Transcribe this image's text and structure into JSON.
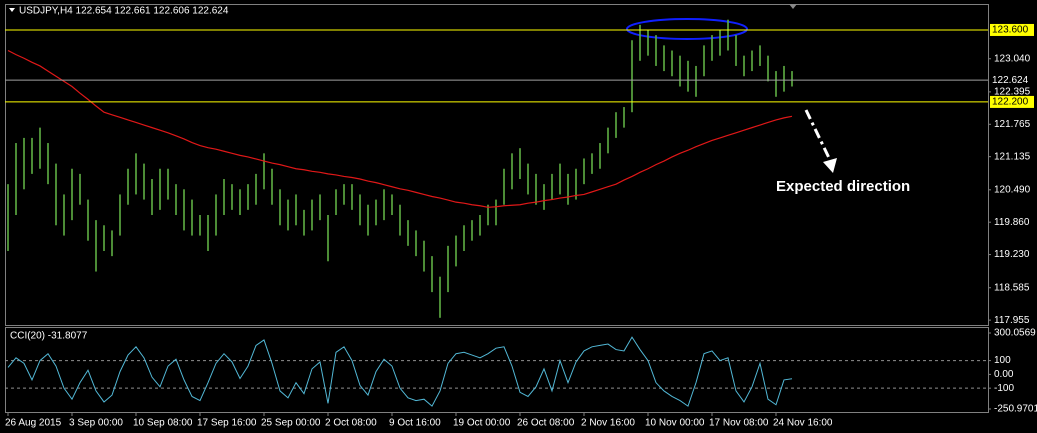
{
  "chart_data": [
    {
      "type": "range-bar",
      "title": "USDJPY,H4 122.654 122.661 122.606 122.624",
      "annotation": "Expected direction",
      "categories": [
        "26 Aug 2015",
        null,
        null,
        null,
        null,
        null,
        null,
        null,
        "3 Sep 00:00",
        null,
        null,
        null,
        null,
        null,
        null,
        null,
        "10 Sep 08:00",
        null,
        null,
        null,
        null,
        null,
        null,
        null,
        "17 Sep 16:00",
        null,
        null,
        null,
        null,
        null,
        null,
        null,
        "25 Sep 00:00",
        null,
        null,
        null,
        null,
        null,
        null,
        null,
        "2 Oct 08:00",
        null,
        null,
        null,
        null,
        null,
        null,
        null,
        "9 Oct 16:00",
        null,
        null,
        null,
        null,
        null,
        null,
        null,
        "19 Oct 00:00",
        null,
        null,
        null,
        null,
        null,
        null,
        null,
        "26 Oct 08:00",
        null,
        null,
        null,
        null,
        null,
        null,
        null,
        "2 Nov 16:00",
        null,
        null,
        null,
        null,
        null,
        null,
        null,
        "10 Nov 00:00",
        null,
        null,
        null,
        null,
        null,
        null,
        null,
        "17 Nov 08:00",
        null,
        null,
        null,
        null,
        null,
        null,
        null,
        "24 Nov 16:00",
        null,
        null
      ],
      "high": [
        120.6,
        121.4,
        121.5,
        121.5,
        121.7,
        121.4,
        121.0,
        120.4,
        120.9,
        120.8,
        120.3,
        119.9,
        119.8,
        119.7,
        120.4,
        120.9,
        121.2,
        121.0,
        120.7,
        120.9,
        120.9,
        120.6,
        120.5,
        120.3,
        120.0,
        120.0,
        120.4,
        120.7,
        120.6,
        120.5,
        120.6,
        120.8,
        121.2,
        120.9,
        120.5,
        120.3,
        120.4,
        120.1,
        120.3,
        120.4,
        120.0,
        120.5,
        120.6,
        120.6,
        120.4,
        120.2,
        120.3,
        120.5,
        120.4,
        120.2,
        119.9,
        119.7,
        119.5,
        119.2,
        118.8,
        119.4,
        119.6,
        119.8,
        119.9,
        120.0,
        120.2,
        120.3,
        120.9,
        121.2,
        121.3,
        121.0,
        120.8,
        120.6,
        120.8,
        121.0,
        120.8,
        120.9,
        121.1,
        121.2,
        121.4,
        121.7,
        122.0,
        122.1,
        123.4,
        123.7,
        123.6,
        123.5,
        123.3,
        123.2,
        123.1,
        123.0,
        122.9,
        123.3,
        123.5,
        123.6,
        123.8,
        123.5,
        123.1,
        123.2,
        123.3,
        123.1,
        122.8,
        122.9,
        122.8
      ],
      "low": [
        119.3,
        120.0,
        120.5,
        120.8,
        120.9,
        120.6,
        119.8,
        119.6,
        119.9,
        120.2,
        119.5,
        118.9,
        119.3,
        119.2,
        119.6,
        120.2,
        120.4,
        120.3,
        120.0,
        120.1,
        120.3,
        120.0,
        119.7,
        119.6,
        119.6,
        119.3,
        119.6,
        120.0,
        120.1,
        120.0,
        120.1,
        120.2,
        120.5,
        120.2,
        119.8,
        119.7,
        119.8,
        119.6,
        119.7,
        119.9,
        119.1,
        120.0,
        120.2,
        120.1,
        119.8,
        119.6,
        119.8,
        119.9,
        120.0,
        119.6,
        119.4,
        119.2,
        118.9,
        118.5,
        118.0,
        118.5,
        119.0,
        119.3,
        119.5,
        119.6,
        119.8,
        119.8,
        120.2,
        120.5,
        120.7,
        120.4,
        120.2,
        120.1,
        120.3,
        120.4,
        120.2,
        120.3,
        120.6,
        120.8,
        120.9,
        121.2,
        121.5,
        121.7,
        122.0,
        123.0,
        123.1,
        122.9,
        122.8,
        122.7,
        122.5,
        122.4,
        122.3,
        122.7,
        123.0,
        123.1,
        123.2,
        122.9,
        122.7,
        122.8,
        122.9,
        122.6,
        122.3,
        122.4,
        122.5
      ],
      "color": "#5fb044",
      "ma_values": [
        123.2,
        123.12,
        123.05,
        122.97,
        122.9,
        122.8,
        122.7,
        122.6,
        122.5,
        122.37,
        122.25,
        122.12,
        122.0,
        121.95,
        121.9,
        121.85,
        121.8,
        121.75,
        121.7,
        121.65,
        121.6,
        121.54,
        121.48,
        121.41,
        121.35,
        121.31,
        121.28,
        121.24,
        121.2,
        121.16,
        121.13,
        121.09,
        121.05,
        121.01,
        120.98,
        120.94,
        120.9,
        120.88,
        120.85,
        120.83,
        120.8,
        120.78,
        120.75,
        120.73,
        120.7,
        120.66,
        120.63,
        120.59,
        120.55,
        120.51,
        120.48,
        120.44,
        120.4,
        120.36,
        120.33,
        120.29,
        120.25,
        120.23,
        120.2,
        120.18,
        120.15,
        120.16,
        120.18,
        120.19,
        120.2,
        120.23,
        120.25,
        120.28,
        120.3,
        120.33,
        120.35,
        120.38,
        120.4,
        120.45,
        120.5,
        120.55,
        120.6,
        120.68,
        120.75,
        120.83,
        120.9,
        120.98,
        121.05,
        121.13,
        121.2,
        121.26,
        121.33,
        121.39,
        121.45,
        121.5,
        121.55,
        121.6,
        121.65,
        121.7,
        121.75,
        121.8,
        121.85,
        121.89,
        121.92
      ],
      "ma_color": "#e01818",
      "ylim": [
        117.86,
        123.93
      ],
      "yticks": [
        {
          "value": 123.04,
          "label": "123.040"
        },
        122.395,
        121.765,
        121.135,
        {
          "value": 120.49,
          "label": "120.490"
        },
        {
          "value": 119.86,
          "label": "119.860"
        },
        {
          "value": 119.23,
          "label": "119.230"
        },
        118.585,
        117.955
      ],
      "levels": [
        {
          "value": 123.6,
          "label": "123.600",
          "color": "#ffff00",
          "boxed": true
        },
        {
          "value": 122.624,
          "label": "122.624",
          "color": "#a0a0a0",
          "boxed": false
        },
        {
          "value": 122.2,
          "label": "122.200",
          "color": "#ffff00",
          "boxed": true
        }
      ]
    },
    {
      "type": "line",
      "title": "CCI(20) -31.8077",
      "values": [
        50,
        120,
        80,
        -40,
        100,
        150,
        60,
        -100,
        -180,
        -60,
        30,
        -120,
        -200,
        -150,
        20,
        140,
        200,
        120,
        -20,
        -90,
        60,
        110,
        -40,
        -160,
        -190,
        -60,
        80,
        150,
        90,
        -30,
        60,
        210,
        250,
        80,
        -120,
        -170,
        -60,
        -140,
        40,
        90,
        -210,
        160,
        200,
        100,
        -80,
        -150,
        20,
        110,
        60,
        -100,
        -170,
        -190,
        -180,
        -230,
        -120,
        80,
        150,
        160,
        140,
        120,
        150,
        190,
        200,
        60,
        -130,
        -160,
        -90,
        40,
        -120,
        100,
        -60,
        90,
        170,
        200,
        210,
        220,
        180,
        170,
        270,
        180,
        100,
        -60,
        -120,
        -160,
        -190,
        -230,
        -60,
        150,
        170,
        100,
        120,
        -120,
        -200,
        -90,
        80,
        -180,
        -220,
        -40,
        -31.8077
      ],
      "color": "#52b8d6",
      "ylim": [
        -250.9701,
        300.0569
      ],
      "yticks": [
        300.0569,
        100,
        {
          "value": 0,
          "label": "0.00"
        },
        -100,
        -250.9701
      ]
    }
  ]
}
